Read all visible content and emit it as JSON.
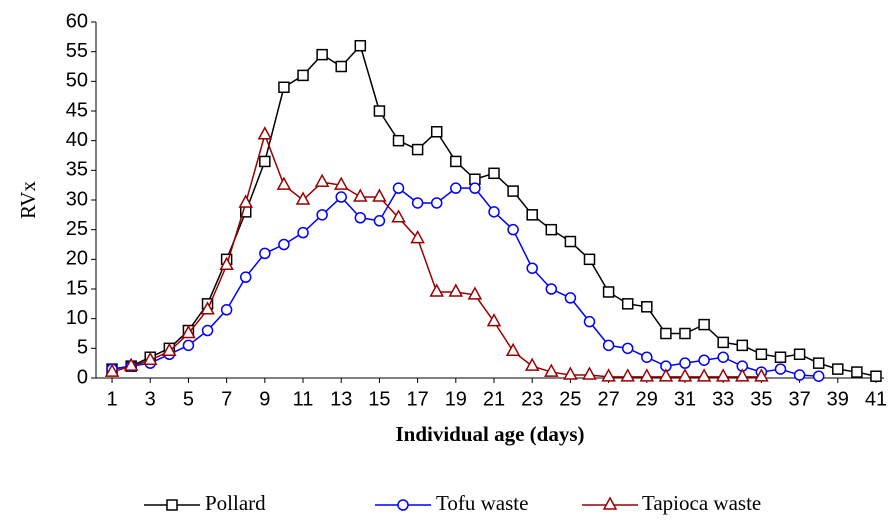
{
  "chart_data": {
    "type": "line",
    "y_label": "RVx",
    "x_label": "Individual age (days)",
    "x": [
      1,
      2,
      3,
      4,
      5,
      6,
      7,
      8,
      9,
      10,
      11,
      12,
      13,
      14,
      15,
      16,
      17,
      18,
      19,
      20,
      21,
      22,
      23,
      24,
      25,
      26,
      27,
      28,
      29,
      30,
      31,
      32,
      33,
      34,
      35,
      36,
      37,
      38,
      39,
      40,
      41
    ],
    "xlim": [
      0.16,
      41.42
    ],
    "xticks": [
      1,
      3,
      5,
      7,
      9,
      11,
      13,
      15,
      17,
      19,
      21,
      23,
      25,
      27,
      29,
      31,
      33,
      35,
      37,
      39,
      41
    ],
    "ylim": [
      0,
      60
    ],
    "yticks": [
      0,
      5,
      10,
      15,
      20,
      25,
      30,
      35,
      40,
      45,
      50,
      55,
      60
    ],
    "series": [
      {
        "name": "Pollard",
        "color": "#000000",
        "marker": "square",
        "values": [
          1.5,
          2,
          3.5,
          5,
          8,
          12.5,
          20,
          28,
          36.5,
          49,
          51,
          54.5,
          52.5,
          56,
          45,
          40,
          38.5,
          41.5,
          36.5,
          33.5,
          34.5,
          31.5,
          27.5,
          25,
          23,
          20,
          14.5,
          12.5,
          12,
          7.5,
          7.5,
          9,
          6,
          5.5,
          4,
          3.5,
          4,
          2.5,
          1.5,
          1,
          0.3
        ]
      },
      {
        "name": "Tofu waste",
        "color": "#0000ff",
        "marker": "circle",
        "values": [
          1.5,
          2,
          2.5,
          4,
          5.5,
          8,
          11.5,
          17,
          21,
          22.5,
          24.5,
          27.5,
          30.5,
          27,
          26.5,
          32,
          29.5,
          29.5,
          32,
          32,
          28,
          25,
          18.5,
          15,
          13.5,
          9.5,
          5.5,
          5,
          3.5,
          2,
          2.5,
          3,
          3.5,
          2,
          1,
          1.5,
          0.5,
          0.3,
          null,
          null,
          null
        ]
      },
      {
        "name": "Tapioca waste",
        "color": "#990000",
        "marker": "triangle",
        "values": [
          1,
          2,
          3,
          4.5,
          7.5,
          11.5,
          19,
          29.5,
          41,
          32.5,
          30,
          33,
          32.5,
          30.5,
          30.5,
          27,
          23.5,
          14.5,
          14.5,
          14,
          9.5,
          4.5,
          2,
          1,
          0.5,
          0.5,
          0.2,
          0.2,
          0.2,
          0.2,
          0.2,
          0.2,
          0.2,
          0.2,
          0.2,
          null,
          null,
          null,
          null,
          null,
          null
        ]
      }
    ]
  }
}
